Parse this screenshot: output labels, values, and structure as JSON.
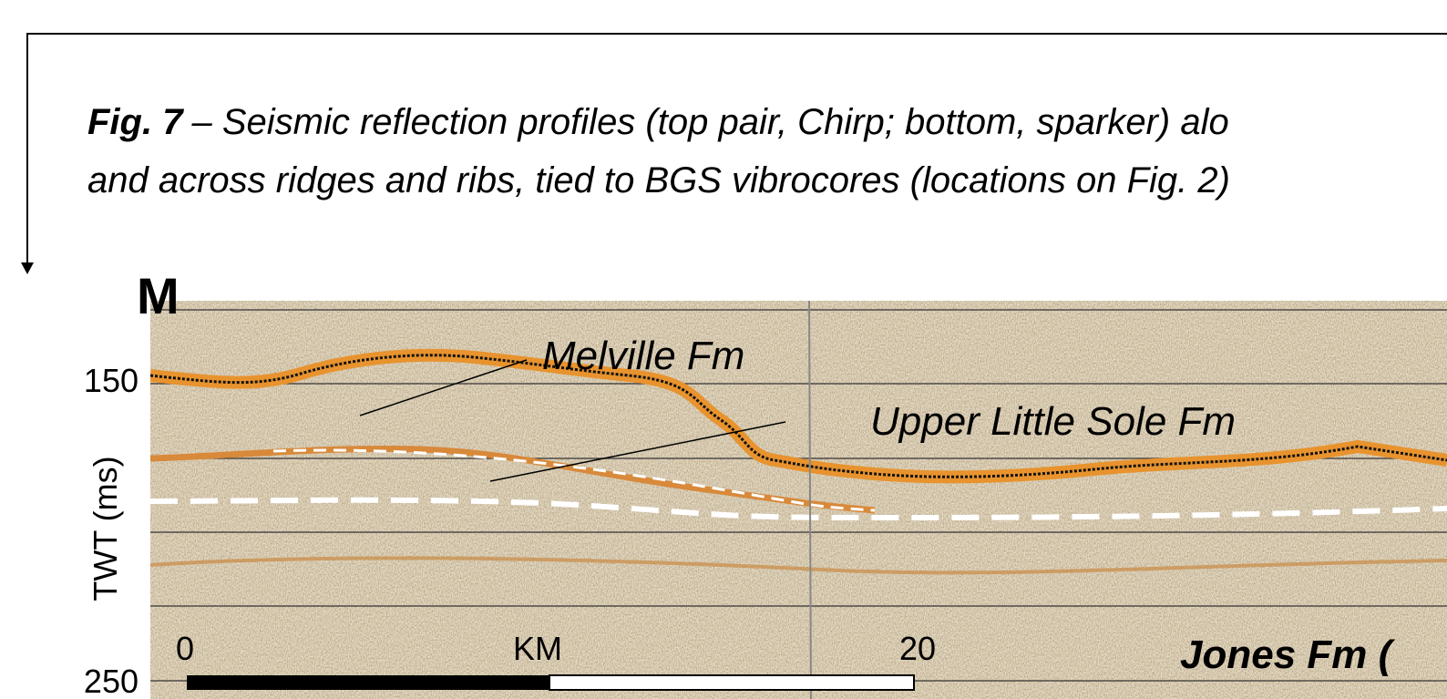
{
  "caption": {
    "label": "Fig. 7",
    "line1": "– Seismic reflection profiles (top pair, Chirp; bottom, sparker) alo",
    "line2": "and across ridges and ribs, tied to BGS vibrocores (locations on Fig. 2)"
  },
  "figure": {
    "panel": "M",
    "y_axis_title": "TWT (ms)",
    "y_ticks": [
      "150",
      "250"
    ],
    "annotations": [
      "Melville Fm",
      "Upper Little Sole Fm",
      "Jones Fm ("
    ],
    "scale_labels": [
      "0",
      "KM",
      "20"
    ]
  }
}
